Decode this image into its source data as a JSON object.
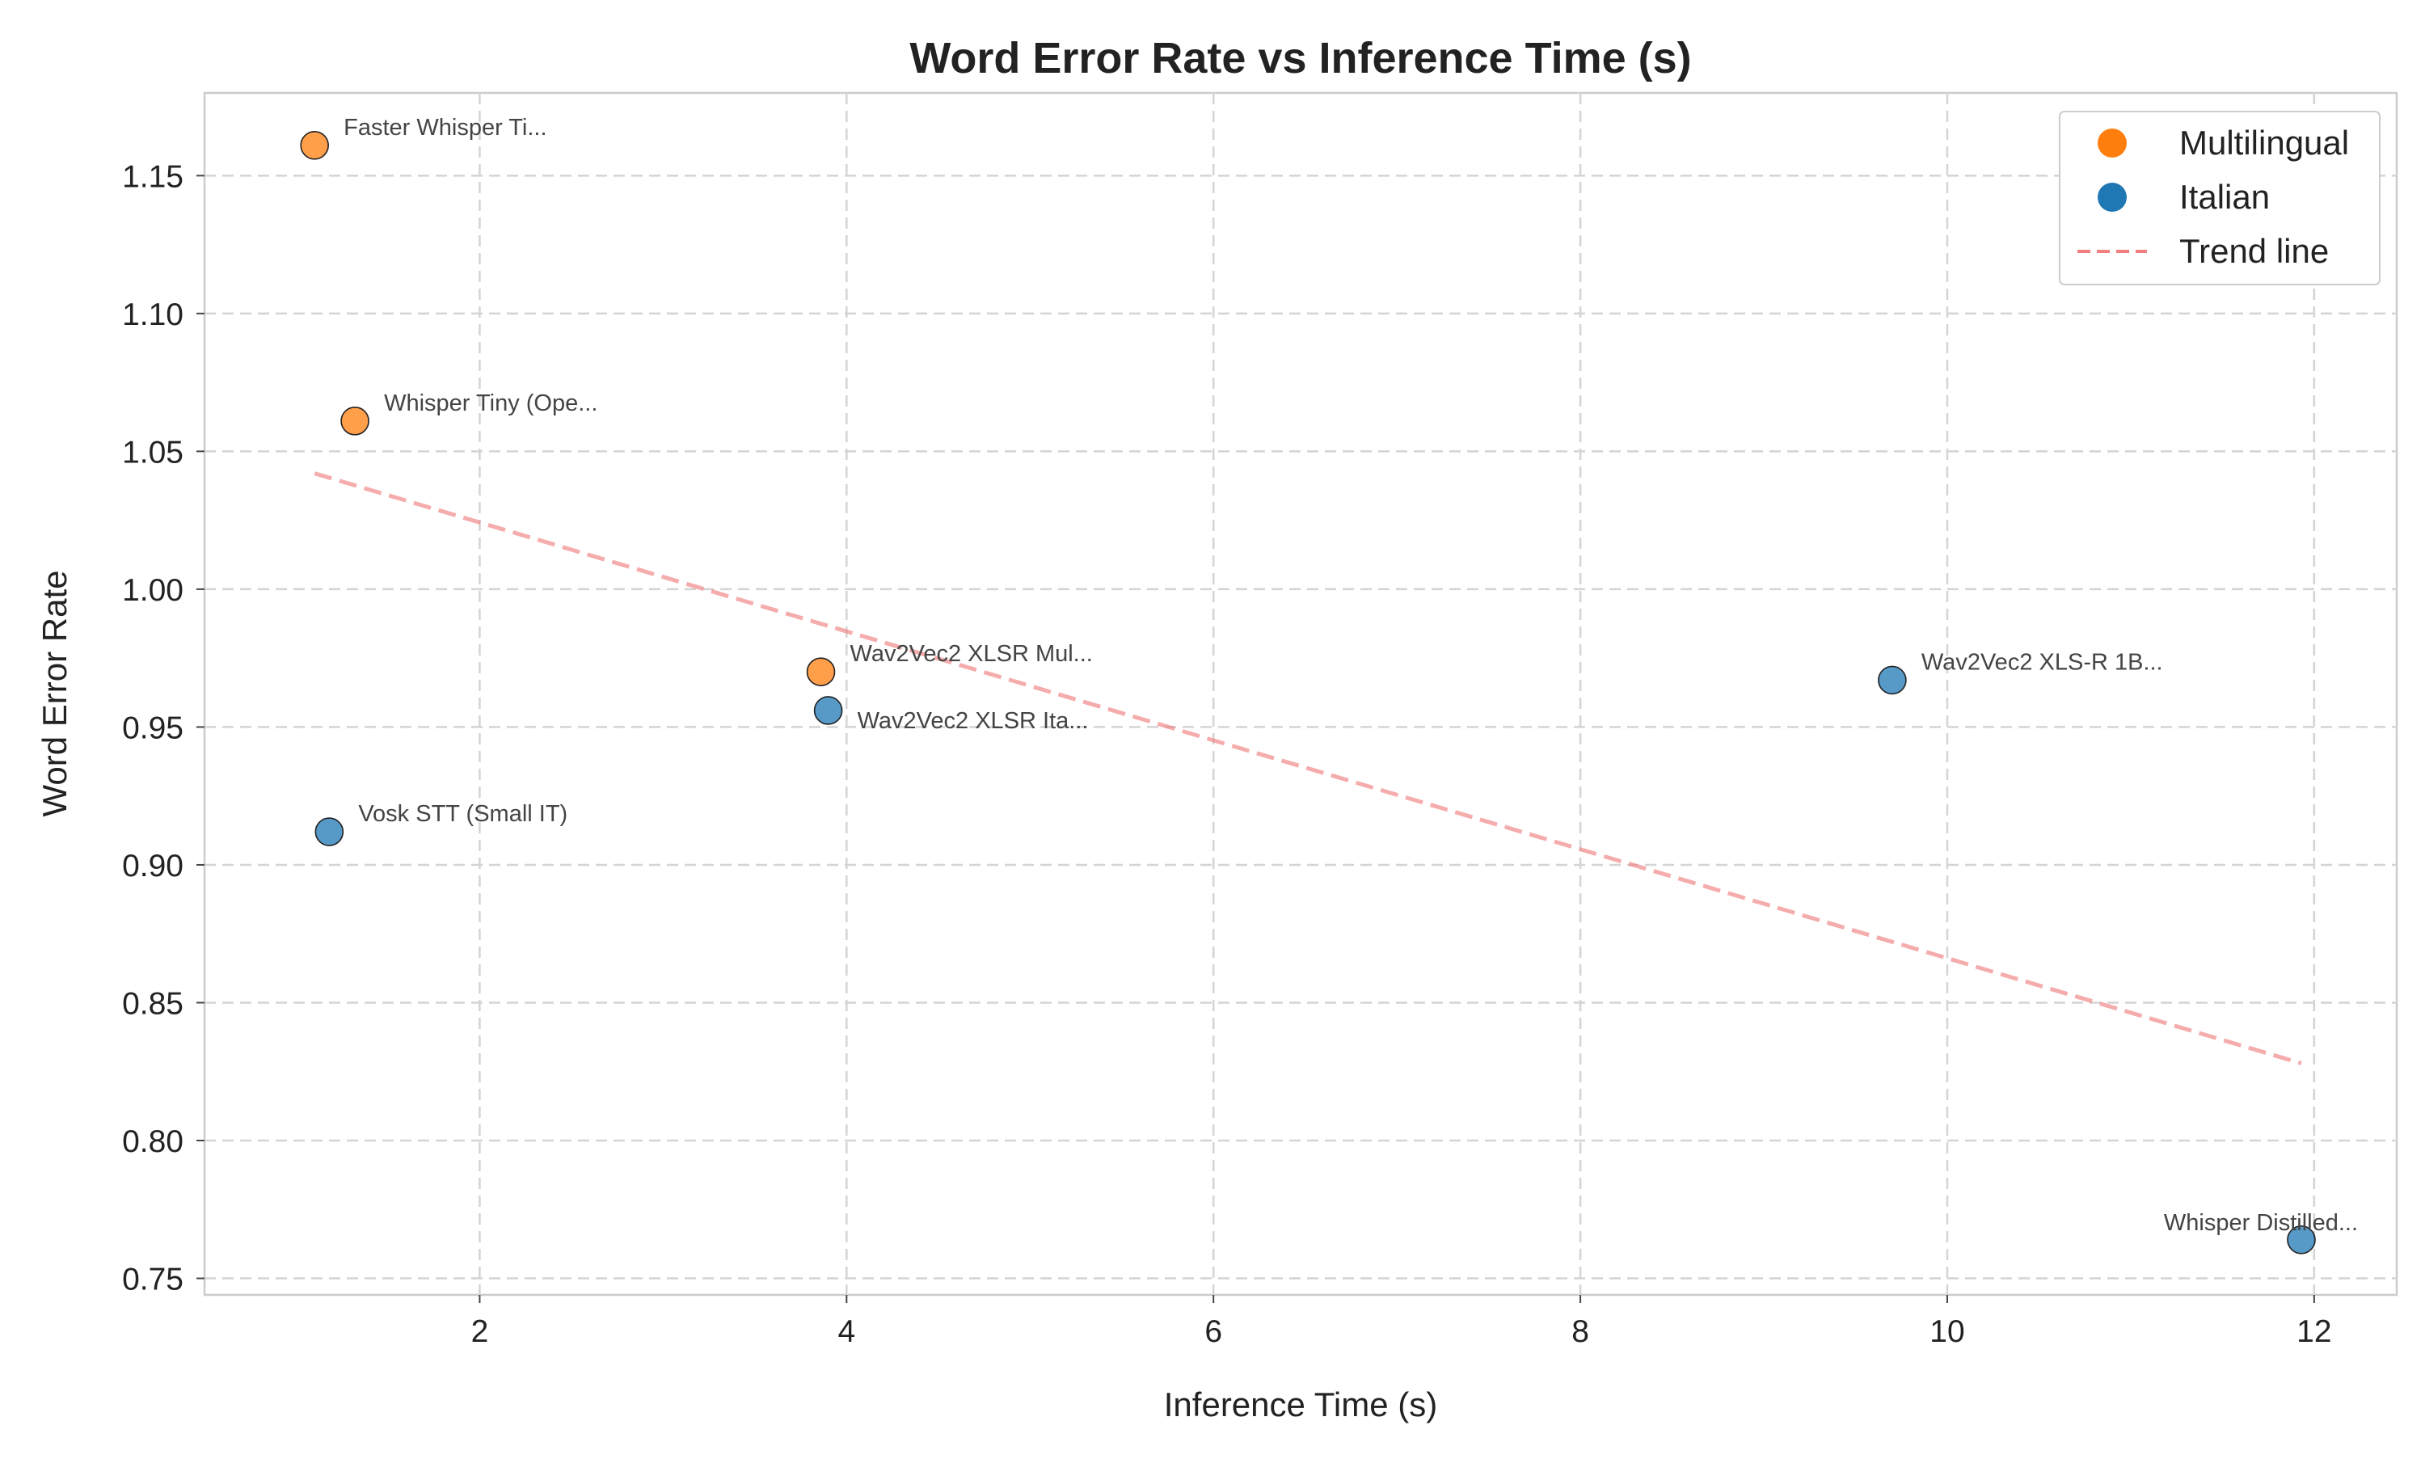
{
  "chart_data": {
    "type": "scatter",
    "title": "Word Error Rate vs Inference Time (s)",
    "xlabel": "Inference Time (s)",
    "ylabel": "Word Error Rate",
    "xlim": [
      0.5,
      12.45
    ],
    "ylim": [
      0.744,
      1.18
    ],
    "xticks": [
      2,
      4,
      6,
      8,
      10,
      12
    ],
    "yticks": [
      0.75,
      0.8,
      0.85,
      0.9,
      0.95,
      1.0,
      1.05,
      1.1,
      1.15
    ],
    "grid": true,
    "legend_position": "top-right",
    "series": [
      {
        "name": "Multilingual",
        "color": "#ff7f0e",
        "points": [
          {
            "x": 1.1,
            "y": 1.161,
            "label": "Faster Whisper Ti..."
          },
          {
            "x": 1.32,
            "y": 1.061,
            "label": "Whisper Tiny (Ope..."
          },
          {
            "x": 3.86,
            "y": 0.97,
            "label": "Wav2Vec2 XLSR Mul..."
          }
        ]
      },
      {
        "name": "Italian",
        "color": "#1f77b4",
        "points": [
          {
            "x": 3.9,
            "y": 0.956,
            "label": "Wav2Vec2 XLSR Ita..."
          },
          {
            "x": 1.18,
            "y": 0.912,
            "label": "Vosk STT (Small IT)"
          },
          {
            "x": 9.7,
            "y": 0.967,
            "label": "Wav2Vec2 XLS-R 1B..."
          },
          {
            "x": 11.93,
            "y": 0.764,
            "label": "Whisper Distilled..."
          }
        ]
      }
    ],
    "trend_line": {
      "name": "Trend line",
      "color": "#f08080",
      "x": [
        1.1,
        11.93
      ],
      "y": [
        1.042,
        0.828
      ]
    }
  }
}
